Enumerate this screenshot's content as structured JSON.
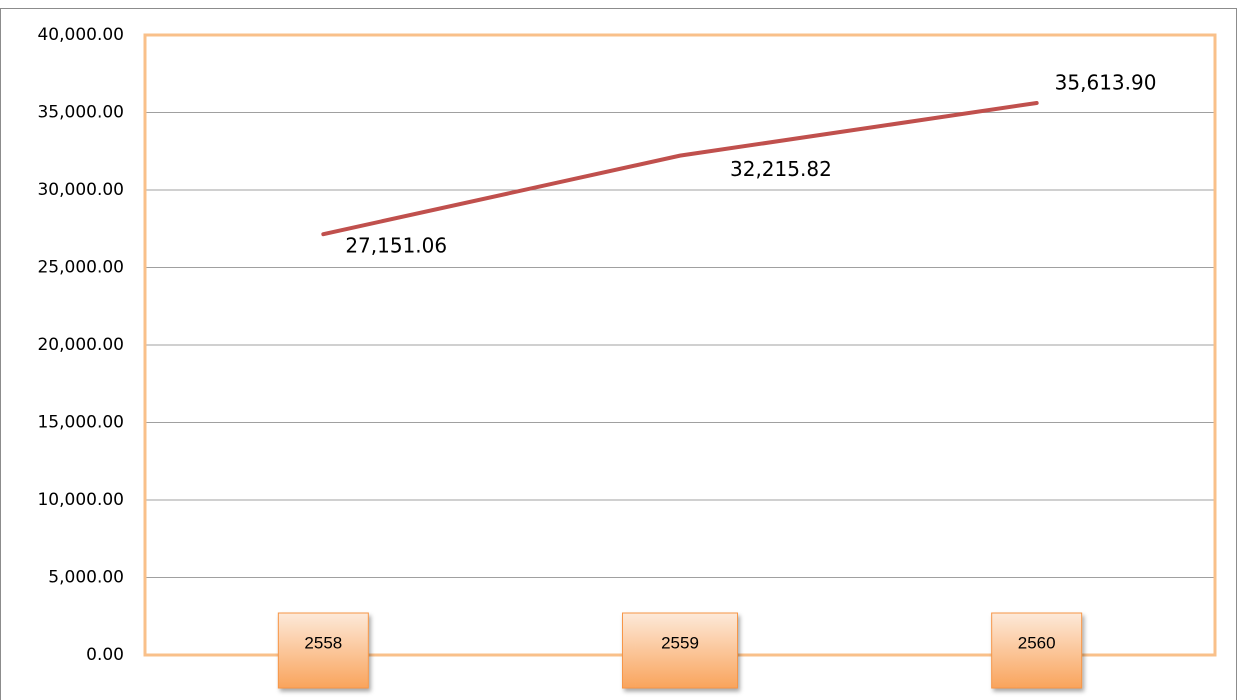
{
  "chart_data": {
    "type": "line",
    "categories": [
      "2558",
      "2559",
      "2560"
    ],
    "series": [
      {
        "color": "#c0504d",
        "values": [
          27151.06,
          32215.82,
          35613.9
        ],
        "value_labels": [
          "27,151.06",
          "32,215.82",
          "35,613.90"
        ]
      }
    ],
    "ylim": [
      0,
      40000
    ],
    "yticks": [
      {
        "value": 0,
        "label": "0.00"
      },
      {
        "value": 5000,
        "label": "5,000.00"
      },
      {
        "value": 10000,
        "label": "10,000.00"
      },
      {
        "value": 15000,
        "label": "15,000.00"
      },
      {
        "value": 20000,
        "label": "20,000.00"
      },
      {
        "value": 25000,
        "label": "25,000.00"
      },
      {
        "value": 30000,
        "label": "30,000.00"
      },
      {
        "value": 35000,
        "label": "35,000.00"
      },
      {
        "value": 40000,
        "label": "40,000.00"
      }
    ],
    "grid": true
  }
}
